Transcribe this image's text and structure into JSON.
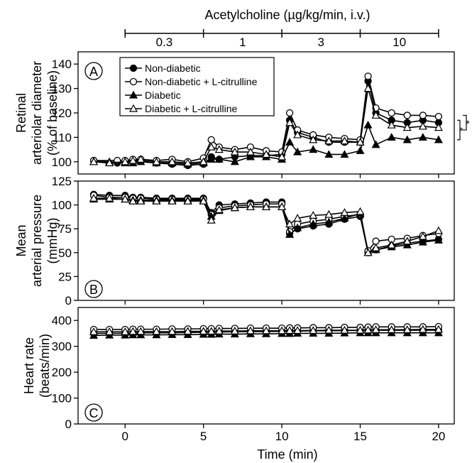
{
  "figure_title": "Acetylcholine (µg/kg/min, i.v.)",
  "dose_bracket": [
    "0.3",
    "1",
    "3",
    "10"
  ],
  "xlabel": "Time (min)",
  "x_ticks": [
    "0",
    "5",
    "10",
    "15",
    "20"
  ],
  "legend": {
    "entries": [
      "Non-diabetic",
      "Non-diabetic + L-citrulline",
      "Diabetic",
      "Diabetic        + L-citrulline"
    ]
  },
  "significance": [
    "*",
    "*"
  ],
  "chart_data": [
    {
      "panel": "A",
      "type": "line",
      "ylabel_lines": [
        "Retinal",
        "arteriolar diameter",
        "(% of baseline)"
      ],
      "xlim": [
        -3,
        21
      ],
      "ylim": [
        95,
        145
      ],
      "y_ticks": [
        "100",
        "110",
        "120",
        "130",
        "140"
      ],
      "legend_placement": "top-left",
      "series": [
        {
          "name": "Non-diabetic",
          "marker": "filled-circle",
          "x": [
            -2,
            -0.5,
            0,
            0.5,
            1,
            2,
            3,
            4,
            5,
            5.5,
            6,
            7,
            8,
            9,
            10,
            10.5,
            11,
            12,
            13,
            14,
            15,
            15.5,
            16,
            17,
            18,
            19,
            20
          ],
          "y": [
            100.5,
            99.5,
            100,
            100,
            100.5,
            99.5,
            99,
            98.5,
            99,
            102,
            101,
            102,
            102.5,
            102.5,
            103,
            117,
            112,
            110,
            108,
            108,
            108,
            133,
            120,
            117,
            116,
            117,
            116
          ]
        },
        {
          "name": "Non-diabetic + L-citrulline",
          "marker": "open-circle",
          "x": [
            -2,
            -0.5,
            0,
            0.5,
            1,
            2,
            3,
            4,
            5,
            5.5,
            6,
            7,
            8,
            9,
            10,
            10.5,
            11,
            12,
            13,
            14,
            15,
            15.5,
            16,
            17,
            18,
            19,
            20
          ],
          "y": [
            100.5,
            100.5,
            100.5,
            101,
            101,
            100.5,
            101,
            100,
            101.5,
            109,
            106,
            105,
            106,
            104.5,
            104,
            120,
            113,
            111,
            110,
            109.5,
            109,
            135,
            122,
            120,
            119,
            119,
            118.5
          ]
        },
        {
          "name": "Diabetic",
          "marker": "filled-triangle",
          "x": [
            -2,
            -1,
            0,
            0.5,
            1,
            2,
            3,
            4,
            5,
            5.5,
            6,
            7,
            8,
            9,
            10,
            10.5,
            11,
            12,
            13,
            14,
            15,
            15.5,
            16,
            17,
            18,
            19,
            20
          ],
          "y": [
            100,
            100,
            99.5,
            99.5,
            100,
            99.5,
            99.5,
            99,
            99.5,
            101,
            101,
            100,
            102,
            102,
            101,
            108,
            104,
            105,
            103,
            103,
            104.5,
            115,
            107,
            110,
            109,
            110,
            109
          ]
        },
        {
          "name": "Diabetic        + L-citrulline",
          "marker": "open-triangle",
          "x": [
            -2,
            -1,
            0,
            0.5,
            1,
            2,
            3,
            4,
            5,
            5.5,
            6,
            7,
            8,
            9,
            10,
            10.5,
            11,
            12,
            13,
            14,
            15,
            15.5,
            16,
            17,
            18,
            19,
            20
          ],
          "y": [
            100,
            99.5,
            100,
            100.5,
            101,
            100,
            100,
            99.5,
            100,
            106,
            105,
            104,
            104,
            103,
            102,
            116,
            111,
            109,
            108.5,
            108.5,
            108,
            130,
            119,
            115,
            114,
            114.5,
            114
          ]
        }
      ]
    },
    {
      "panel": "B",
      "type": "line",
      "ylabel_lines": [
        "Mean",
        "arterial pressure",
        "(mmHg)"
      ],
      "xlim": [
        -3,
        21
      ],
      "ylim": [
        0,
        125
      ],
      "y_ticks": [
        "0",
        "25",
        "50",
        "75",
        "100",
        "125"
      ],
      "series": [
        {
          "name": "Non-diabetic",
          "marker": "filled-circle",
          "x": [
            -2,
            -1,
            0,
            0.5,
            1,
            2,
            3,
            4,
            5,
            5.5,
            6,
            7,
            8,
            9,
            10,
            10.5,
            11,
            12,
            13,
            14,
            15,
            15.5,
            16,
            17,
            18,
            19,
            20
          ],
          "y": [
            111,
            110,
            110,
            108,
            108,
            107,
            107,
            107,
            107,
            92,
            100,
            101,
            102,
            103,
            103,
            70,
            75,
            78,
            80,
            85,
            88,
            50,
            53,
            57,
            60,
            62,
            64
          ]
        },
        {
          "name": "Non-diabetic + L-citrulline",
          "marker": "open-circle",
          "x": [
            -2,
            -1,
            0,
            0.5,
            1,
            2,
            3,
            4,
            5,
            5.5,
            6,
            7,
            8,
            9,
            10,
            10.5,
            11,
            12,
            13,
            14,
            15,
            15.5,
            16,
            17,
            18,
            19,
            20
          ],
          "y": [
            110,
            108,
            108,
            107,
            107,
            106,
            106,
            106,
            106,
            90,
            97,
            99,
            100,
            101,
            101,
            72,
            80,
            83,
            85,
            88,
            90,
            52,
            62,
            64,
            65,
            68,
            70
          ]
        },
        {
          "name": "Diabetic",
          "marker": "filled-triangle",
          "x": [
            -2,
            -1,
            0,
            0.5,
            1,
            2,
            3,
            4,
            5,
            5.5,
            6,
            7,
            8,
            9,
            10,
            10.5,
            11,
            12,
            13,
            14,
            15,
            15.5,
            16,
            17,
            18,
            19,
            20
          ],
          "y": [
            106,
            106,
            106,
            105,
            105,
            105,
            105,
            105,
            105,
            88,
            94,
            97,
            98,
            98,
            98,
            69,
            76,
            80,
            82,
            86,
            91,
            50,
            53,
            56,
            58,
            61,
            63
          ]
        },
        {
          "name": "Diabetic        + L-citrulline",
          "marker": "open-triangle",
          "x": [
            -2,
            -1,
            0,
            0.5,
            1,
            2,
            3,
            4,
            5,
            5.5,
            6,
            7,
            8,
            9,
            10,
            10.5,
            11,
            12,
            13,
            14,
            15,
            15.5,
            16,
            17,
            18,
            19,
            20
          ],
          "y": [
            107,
            107,
            106,
            104,
            104,
            104,
            104,
            104,
            104,
            84,
            95,
            97,
            98,
            98,
            98,
            80,
            86,
            89,
            90,
            92,
            93,
            50,
            55,
            58,
            62,
            67,
            73
          ]
        }
      ]
    },
    {
      "panel": "C",
      "type": "line",
      "ylabel_lines": [
        "Heart rate",
        "(beats/min)"
      ],
      "xlim": [
        -3,
        21
      ],
      "ylim": [
        0,
        450
      ],
      "y_ticks": [
        "0",
        "100",
        "200",
        "300",
        "400"
      ],
      "series": [
        {
          "name": "Non-diabetic",
          "marker": "filled-circle",
          "x": [
            -2,
            -1,
            0,
            0.5,
            1,
            2,
            3,
            4,
            5,
            5.5,
            6,
            7,
            8,
            9,
            10,
            10.5,
            11,
            12,
            13,
            14,
            15,
            15.5,
            16,
            17,
            18,
            19,
            20
          ],
          "y": [
            350,
            350,
            350,
            350,
            352,
            352,
            352,
            353,
            354,
            355,
            355,
            356,
            357,
            357,
            358,
            358,
            359,
            360,
            360,
            361,
            361,
            362,
            362,
            362,
            362,
            362,
            362
          ]
        },
        {
          "name": "Non-diabetic + L-citrulline",
          "marker": "open-circle",
          "x": [
            -2,
            -1,
            0,
            0.5,
            1,
            2,
            3,
            4,
            5,
            5.5,
            6,
            7,
            8,
            9,
            10,
            10.5,
            11,
            12,
            13,
            14,
            15,
            15.5,
            16,
            17,
            18,
            19,
            20
          ],
          "y": [
            365,
            365,
            365,
            366,
            366,
            366,
            367,
            367,
            368,
            368,
            369,
            369,
            370,
            370,
            370,
            371,
            371,
            372,
            372,
            373,
            373,
            374,
            375,
            375,
            375,
            375,
            376
          ]
        },
        {
          "name": "Diabetic",
          "marker": "filled-triangle",
          "x": [
            -2,
            -1,
            0,
            0.5,
            1,
            2,
            3,
            4,
            5,
            5.5,
            6,
            7,
            8,
            9,
            10,
            10.5,
            11,
            12,
            13,
            14,
            15,
            15.5,
            16,
            17,
            18,
            19,
            20
          ],
          "y": [
            342,
            343,
            343,
            344,
            344,
            344,
            345,
            345,
            346,
            346,
            347,
            347,
            348,
            348,
            349,
            349,
            350,
            350,
            350,
            351,
            352,
            352,
            352,
            352,
            352,
            352,
            352
          ]
        },
        {
          "name": "Diabetic        + L-citrulline",
          "marker": "open-triangle",
          "x": [
            -2,
            -1,
            0,
            0.5,
            1,
            2,
            3,
            4,
            5,
            5.5,
            6,
            7,
            8,
            9,
            10,
            10.5,
            11,
            12,
            13,
            14,
            15,
            15.5,
            16,
            17,
            18,
            19,
            20
          ],
          "y": [
            356,
            356,
            356,
            357,
            357,
            357,
            357,
            358,
            358,
            358,
            359,
            359,
            360,
            360,
            360,
            361,
            361,
            361,
            362,
            362,
            362,
            363,
            364,
            364,
            364,
            365,
            365
          ]
        }
      ]
    }
  ]
}
